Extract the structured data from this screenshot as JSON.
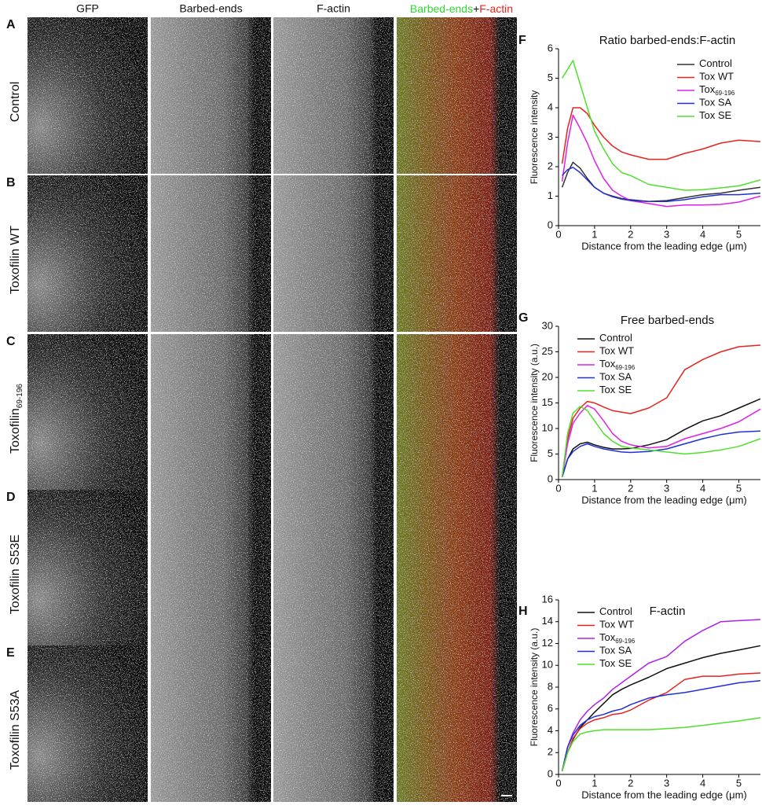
{
  "figure": {
    "column_headers": [
      "GFP",
      "Barbed-ends",
      "F-actin"
    ],
    "merge_header": [
      "Barbed-ends",
      "+",
      "F-actin"
    ],
    "rows": [
      {
        "letter": "A",
        "label": "Control"
      },
      {
        "letter": "B",
        "label": "Toxofilin WT"
      },
      {
        "letter": "C",
        "label": "Toxofilin",
        "sub": "69-196"
      },
      {
        "letter": "D",
        "label": "Toxofilin S53E"
      },
      {
        "letter": "E",
        "label": "Toxofilin S53A"
      }
    ]
  },
  "chart_data": [
    {
      "type": "line",
      "panel_label": "F",
      "title": "Ratio barbed-ends:F-actin",
      "x_label": "Distance from the leading edge (μm)",
      "y_label": "Fluorescence intensity",
      "x": [
        0.1,
        0.25,
        0.4,
        0.6,
        0.8,
        1.0,
        1.25,
        1.5,
        1.75,
        2.0,
        2.5,
        3.0,
        3.5,
        4.0,
        4.5,
        5.0,
        5.6
      ],
      "xlim": [
        0,
        5.6
      ],
      "xticks": [
        0,
        1,
        2,
        3,
        4,
        5
      ],
      "ylim": [
        0,
        6
      ],
      "yticks": [
        0,
        1,
        2,
        3,
        4,
        5,
        6
      ],
      "legend": "top-right",
      "series": [
        {
          "name": "Control",
          "color": "#333333",
          "values": [
            1.3,
            1.8,
            2.15,
            1.95,
            1.6,
            1.3,
            1.1,
            1.0,
            0.92,
            0.88,
            0.82,
            0.85,
            0.95,
            1.05,
            1.1,
            1.2,
            1.3
          ]
        },
        {
          "name": "Tox WT",
          "color": "#e8231f",
          "values": [
            2.1,
            3.3,
            4.0,
            4.0,
            3.8,
            3.4,
            3.0,
            2.7,
            2.5,
            2.4,
            2.25,
            2.25,
            2.45,
            2.6,
            2.8,
            2.9,
            2.85
          ]
        },
        {
          "name": "Tox",
          "sub": "69-196",
          "color": "#e020e8",
          "values": [
            1.5,
            2.8,
            3.75,
            3.3,
            2.8,
            2.2,
            1.6,
            1.2,
            1.0,
            0.85,
            0.75,
            0.65,
            0.7,
            0.7,
            0.72,
            0.8,
            1.0
          ]
        },
        {
          "name": "Tox SA",
          "color": "#1f2fd8",
          "values": [
            1.7,
            1.9,
            1.98,
            1.8,
            1.55,
            1.3,
            1.1,
            0.98,
            0.9,
            0.85,
            0.82,
            0.82,
            0.88,
            0.98,
            1.05,
            1.05,
            1.1
          ]
        },
        {
          "name": "Tox SE",
          "color": "#4fe02c",
          "values": [
            5.0,
            5.3,
            5.6,
            4.8,
            4.0,
            3.2,
            2.6,
            2.1,
            1.8,
            1.7,
            1.4,
            1.3,
            1.2,
            1.22,
            1.28,
            1.35,
            1.55
          ]
        }
      ]
    },
    {
      "type": "line",
      "panel_label": "G",
      "title": "Free barbed-ends",
      "x_label": "Distance from the leading edge (μm)",
      "y_label": "Fluorescence intensity (a.u.)",
      "x": [
        0.1,
        0.25,
        0.4,
        0.6,
        0.8,
        1.0,
        1.25,
        1.5,
        1.75,
        2.0,
        2.5,
        3.0,
        3.5,
        4.0,
        4.5,
        5.0,
        5.6
      ],
      "xlim": [
        0,
        5.6
      ],
      "xticks": [
        0,
        1,
        2,
        3,
        4,
        5
      ],
      "ylim": [
        0,
        30
      ],
      "yticks": [
        0,
        5,
        10,
        15,
        20,
        25,
        30
      ],
      "legend": "top-left",
      "series": [
        {
          "name": "Control",
          "color": "#111111",
          "values": [
            0.5,
            4,
            6,
            7,
            7.3,
            6.8,
            6.3,
            6,
            6,
            6.1,
            6.8,
            7.8,
            9.8,
            11.5,
            12.5,
            14,
            15.8
          ]
        },
        {
          "name": "Tox WT",
          "color": "#e8231f",
          "values": [
            0.5,
            8,
            12,
            14,
            15.3,
            15,
            14.2,
            13.5,
            13.2,
            12.9,
            14,
            16,
            21.5,
            23.5,
            25,
            26,
            26.3
          ]
        },
        {
          "name": "Tox",
          "sub": "69-196",
          "color": "#e020e8",
          "values": [
            0.5,
            7,
            11,
            13,
            14.5,
            13.8,
            11.5,
            9,
            7.5,
            6.8,
            6.2,
            6.5,
            8,
            9,
            10,
            11.3,
            13.8
          ]
        },
        {
          "name": "Tox SA",
          "color": "#1f2fd8",
          "values": [
            0.5,
            4,
            5.5,
            6.5,
            7,
            6.5,
            6,
            5.7,
            5.4,
            5.3,
            5.5,
            6,
            7,
            8,
            8.8,
            9.3,
            9.5
          ]
        },
        {
          "name": "Tox SE",
          "color": "#4fe02c",
          "values": [
            0.5,
            9,
            13,
            14.3,
            13.5,
            11.5,
            9,
            7.5,
            6.5,
            6.2,
            5.8,
            5.4,
            5,
            5.3,
            5.8,
            6.5,
            8
          ]
        }
      ]
    },
    {
      "type": "line",
      "panel_label": "H",
      "title": "F-actin",
      "x_label": "Distance from the leading edge (μm)",
      "y_label": "Fluorescence intensity (a.u.)",
      "x": [
        0.1,
        0.25,
        0.4,
        0.6,
        0.8,
        1.0,
        1.25,
        1.5,
        1.75,
        2.0,
        2.5,
        3.0,
        3.5,
        4.0,
        4.5,
        5.0,
        5.6
      ],
      "xlim": [
        0,
        5.6
      ],
      "xticks": [
        0,
        1,
        2,
        3,
        4,
        5
      ],
      "ylim": [
        0,
        16
      ],
      "yticks": [
        0,
        2,
        4,
        6,
        8,
        10,
        12,
        14,
        16
      ],
      "legend": "top-left",
      "series": [
        {
          "name": "Control",
          "color": "#111111",
          "values": [
            0.3,
            2,
            3.2,
            4.3,
            5,
            5.7,
            6.5,
            7.3,
            7.8,
            8.2,
            8.9,
            9.7,
            10.2,
            10.7,
            11.1,
            11.4,
            11.8
          ]
        },
        {
          "name": "Tox WT",
          "color": "#e8231f",
          "values": [
            0.3,
            2,
            3.3,
            4.2,
            4.7,
            5,
            5.2,
            5.5,
            5.6,
            5.9,
            6.8,
            7.5,
            8.7,
            9,
            9,
            9.2,
            9.3
          ]
        },
        {
          "name": "Tox",
          "sub": "69-196",
          "color": "#b020e8",
          "values": [
            0.3,
            2.5,
            3.8,
            5,
            5.8,
            6.4,
            7,
            7.8,
            8.4,
            9,
            10.2,
            10.8,
            12.2,
            13.2,
            14,
            14.1,
            14.2
          ]
        },
        {
          "name": "Tox SA",
          "color": "#1f2fd8",
          "values": [
            0.3,
            2.5,
            3.6,
            4.5,
            5,
            5.3,
            5.5,
            5.8,
            6,
            6.4,
            7,
            7.3,
            7.5,
            7.8,
            8.1,
            8.4,
            8.6
          ]
        },
        {
          "name": "Tox SE",
          "color": "#4fe02c",
          "values": [
            0.3,
            2,
            3,
            3.7,
            3.9,
            4,
            4.1,
            4.1,
            4.1,
            4.1,
            4.1,
            4.2,
            4.3,
            4.5,
            4.7,
            4.9,
            5.2
          ]
        }
      ]
    }
  ]
}
